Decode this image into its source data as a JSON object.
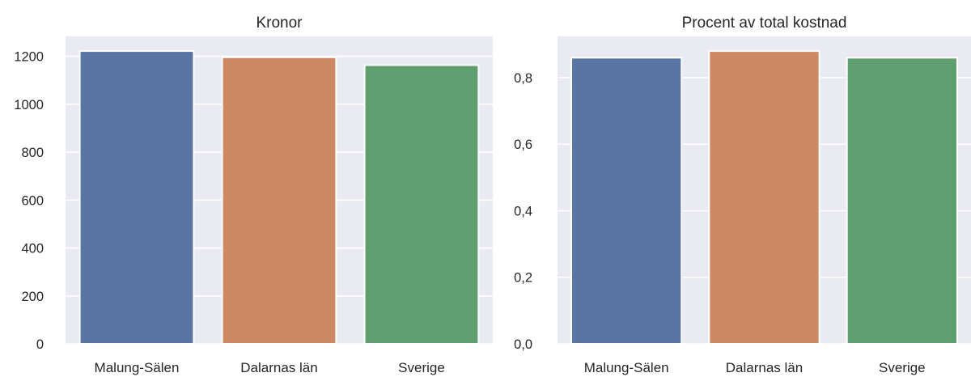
{
  "chart_data": [
    {
      "type": "bar",
      "title": "Kronor",
      "categories": [
        "Malung-Sälen",
        "Dalarnas län",
        "Sverige"
      ],
      "values": [
        1222,
        1196,
        1163
      ],
      "colors": [
        "#5975a4",
        "#cc8963",
        "#5f9e6e"
      ],
      "yticks": [
        "0",
        "200",
        "400",
        "600",
        "800",
        "1000",
        "1200"
      ],
      "ytick_values": [
        0,
        200,
        400,
        600,
        800,
        1000,
        1200
      ],
      "ylim": [
        0,
        1283
      ],
      "grid": true,
      "xlabel": "",
      "ylabel": ""
    },
    {
      "type": "bar",
      "title": "Procent av total kostnad",
      "categories": [
        "Malung-Sälen",
        "Dalarnas län",
        "Sverige"
      ],
      "values": [
        0.86,
        0.88,
        0.86
      ],
      "colors": [
        "#5975a4",
        "#cc8963",
        "#5f9e6e"
      ],
      "yticks": [
        "0,0",
        "0,2",
        "0,4",
        "0,6",
        "0,8"
      ],
      "ytick_values": [
        0,
        0.2,
        0.4,
        0.6,
        0.8
      ],
      "ylim": [
        0,
        0.924
      ],
      "grid": true,
      "xlabel": "",
      "ylabel": ""
    }
  ]
}
